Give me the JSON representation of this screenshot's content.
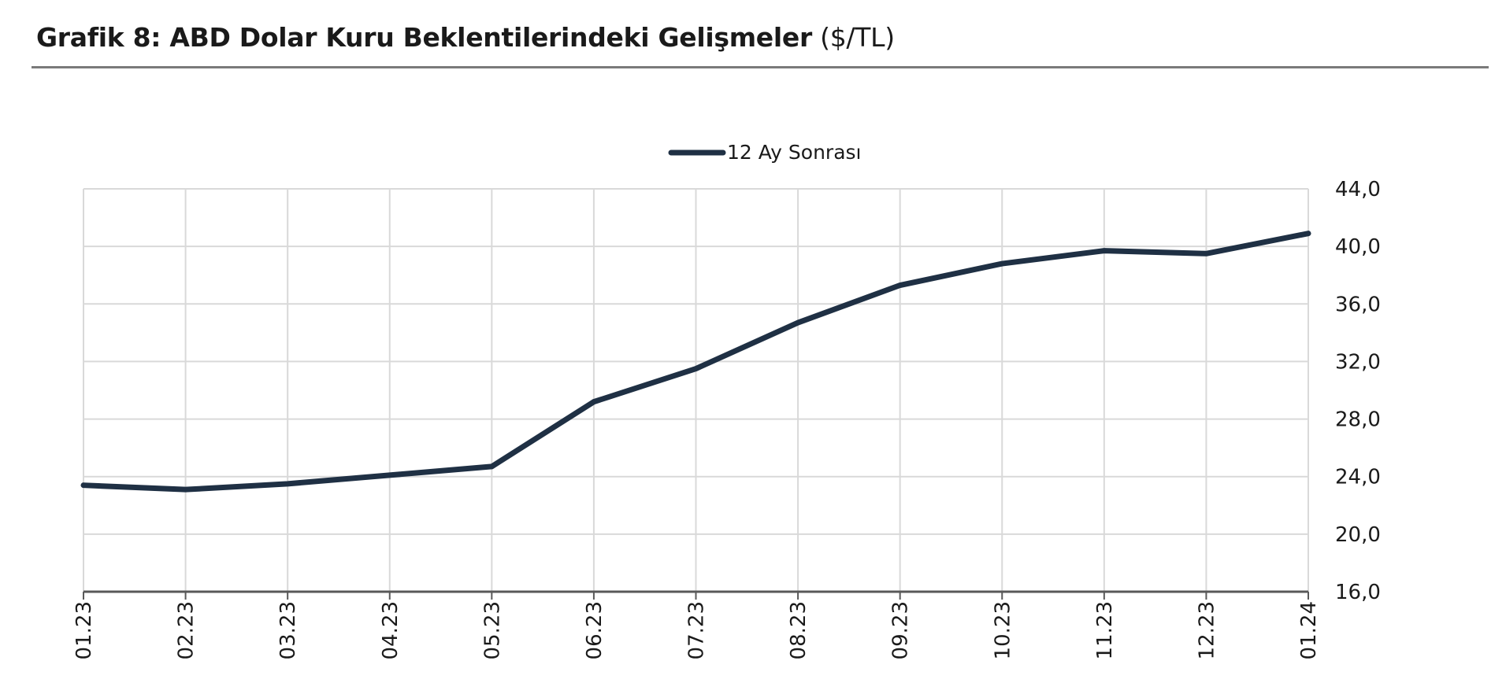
{
  "header": {
    "title_bold": "Grafik 8: ABD Dolar Kuru Beklentilerindeki Gelişmeler",
    "title_unit": "($/TL)"
  },
  "chart_data": {
    "type": "line",
    "categories": [
      "01.23",
      "02.23",
      "03.23",
      "04.23",
      "05.23",
      "06.23",
      "07.23",
      "08.23",
      "09.23",
      "10.23",
      "11.23",
      "12.23",
      "01.24"
    ],
    "series": [
      {
        "name": "12 Ay Sonrası",
        "color": "#1f3044",
        "values": [
          23.4,
          23.1,
          23.5,
          24.1,
          24.7,
          29.2,
          31.5,
          34.7,
          37.3,
          38.8,
          39.7,
          39.5,
          40.9
        ]
      }
    ],
    "yticks": [
      "16,0",
      "20,0",
      "24,0",
      "28,0",
      "32,0",
      "36,0",
      "40,0",
      "44,0"
    ],
    "ylim": [
      16,
      44
    ],
    "y_axis_side": "right",
    "grid": true,
    "legend_position": "top-center",
    "colors": {
      "line": "#1f3044",
      "grid": "#d9d9d9",
      "axis": "#595959",
      "rule": "#7a7a7a"
    }
  }
}
